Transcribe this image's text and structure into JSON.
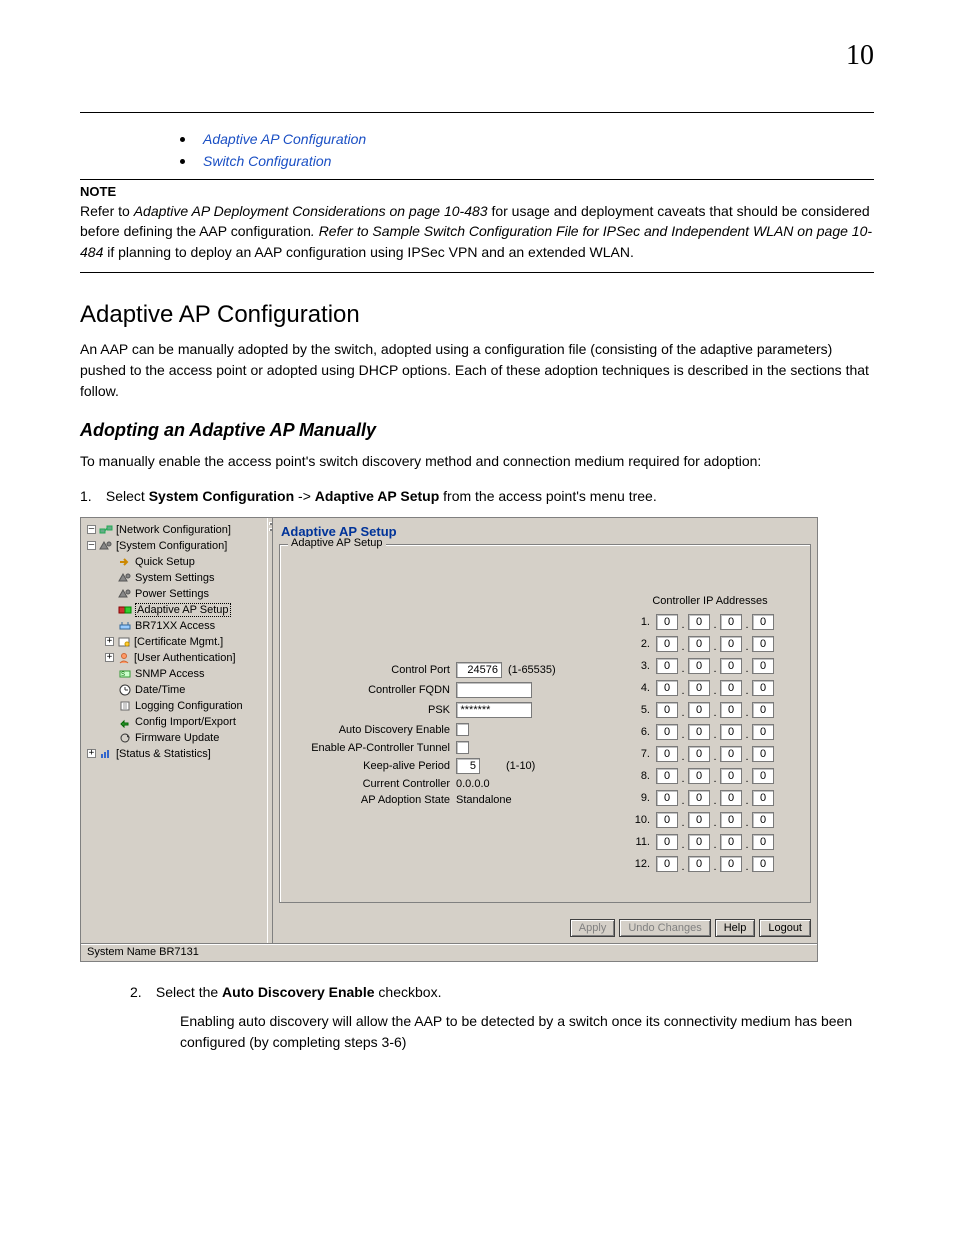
{
  "page_number": "10",
  "links": {
    "adaptive_ap_config": "Adaptive AP Configuration",
    "switch_config": "Switch Configuration"
  },
  "note": {
    "label": "NOTE",
    "text_prefix": "Refer to ",
    "ref1": "Adaptive AP Deployment Considerations on page 10-483",
    "text_mid1": " for usage and deployment caveats that should be considered before defining the AAP configuration",
    "text_mid1_tail": ". Refer to ",
    "ref2": "Sample Switch Configuration File for IPSec and Independent WLAN on page 10-484",
    "text_tail": " if planning to deploy an AAP configuration using IPSec VPN and an extended WLAN."
  },
  "headings": {
    "h2": "Adaptive AP Configuration",
    "h3": "Adopting an Adaptive AP Manually"
  },
  "paras": {
    "p1": "An AAP can be manually adopted by the switch, adopted using a configuration file (consisting of the adaptive parameters) pushed to the access point or adopted using DHCP options. Each of these adoption techniques is described in the sections that follow.",
    "p2": "To manually enable the access point's switch discovery method and connection medium required for adoption:"
  },
  "steps": {
    "s1_num": "1.",
    "s1_lead": "Select ",
    "s1_bold1": "System Configuration",
    "s1_mid": " -> ",
    "s1_bold2": "Adaptive AP Setup",
    "s1_tail": " from the access point's menu tree.",
    "s2_num": "2.",
    "s2_lead": "Select the ",
    "s2_bold": "Auto Discovery Enable",
    "s2_tail": " checkbox.",
    "s2_desc": "Enabling auto discovery will allow the AAP to be detected by a switch once its connectivity medium has been configured (by completing steps 3-6)"
  },
  "ui": {
    "tree": {
      "items": [
        {
          "indent": 0,
          "handle": "–",
          "icon": "net",
          "label": "[Network Configuration]"
        },
        {
          "indent": 0,
          "handle": "–",
          "icon": "sys",
          "label": "[System Configuration]"
        },
        {
          "indent": 1,
          "handle": "",
          "icon": "arrow",
          "label": "Quick Setup"
        },
        {
          "indent": 1,
          "handle": "",
          "icon": "sys",
          "label": "System Settings"
        },
        {
          "indent": 1,
          "handle": "",
          "icon": "sys",
          "label": "Power Settings"
        },
        {
          "indent": 1,
          "handle": "",
          "icon": "aap",
          "label": "Adaptive AP Setup",
          "selected": true
        },
        {
          "indent": 1,
          "handle": "",
          "icon": "ap",
          "label": "BR71XX Access"
        },
        {
          "indent": 1,
          "handle": "+",
          "icon": "cert",
          "label": "[Certificate Mgmt.]"
        },
        {
          "indent": 1,
          "handle": "+",
          "icon": "user",
          "label": "[User Authentication]"
        },
        {
          "indent": 1,
          "handle": "",
          "icon": "snmp",
          "label": "SNMP Access"
        },
        {
          "indent": 1,
          "handle": "",
          "icon": "clock",
          "label": "Date/Time"
        },
        {
          "indent": 1,
          "handle": "",
          "icon": "log",
          "label": "Logging Configuration"
        },
        {
          "indent": 1,
          "handle": "",
          "icon": "cfg",
          "label": "Config Import/Export"
        },
        {
          "indent": 1,
          "handle": "",
          "icon": "fw",
          "label": "Firmware Update"
        },
        {
          "indent": 0,
          "handle": "+",
          "icon": "stats",
          "label": "[Status & Statistics]"
        }
      ]
    },
    "title": "Adaptive AP Setup",
    "group_label": "Adaptive AP Setup",
    "form": {
      "control_port_label": "Control Port",
      "control_port_value": "24576",
      "control_port_range": "(1-65535)",
      "controller_fqdn_label": "Controller FQDN",
      "controller_fqdn_value": "",
      "psk_label": "PSK",
      "psk_value": "*******",
      "auto_discovery_label": "Auto Discovery Enable",
      "tunnel_label": "Enable AP-Controller Tunnel",
      "keepalive_label": "Keep-alive Period",
      "keepalive_value": "5",
      "keepalive_range": "(1-10)",
      "current_controller_label": "Current Controller",
      "current_controller_value": "0.0.0.0",
      "adoption_label": "AP Adoption State",
      "adoption_value": "Standalone"
    },
    "ips": {
      "title": "Controller IP Addresses",
      "rows": [
        {
          "n": "1.",
          "o": [
            "0",
            "0",
            "0",
            "0"
          ]
        },
        {
          "n": "2.",
          "o": [
            "0",
            "0",
            "0",
            "0"
          ]
        },
        {
          "n": "3.",
          "o": [
            "0",
            "0",
            "0",
            "0"
          ]
        },
        {
          "n": "4.",
          "o": [
            "0",
            "0",
            "0",
            "0"
          ]
        },
        {
          "n": "5.",
          "o": [
            "0",
            "0",
            "0",
            "0"
          ]
        },
        {
          "n": "6.",
          "o": [
            "0",
            "0",
            "0",
            "0"
          ]
        },
        {
          "n": "7.",
          "o": [
            "0",
            "0",
            "0",
            "0"
          ]
        },
        {
          "n": "8.",
          "o": [
            "0",
            "0",
            "0",
            "0"
          ]
        },
        {
          "n": "9.",
          "o": [
            "0",
            "0",
            "0",
            "0"
          ]
        },
        {
          "n": "10.",
          "o": [
            "0",
            "0",
            "0",
            "0"
          ]
        },
        {
          "n": "11.",
          "o": [
            "0",
            "0",
            "0",
            "0"
          ]
        },
        {
          "n": "12.",
          "o": [
            "0",
            "0",
            "0",
            "0"
          ]
        }
      ]
    },
    "buttons": {
      "apply": "Apply",
      "undo": "Undo Changes",
      "help": "Help",
      "logout": "Logout"
    },
    "statusbar": "System Name BR7131"
  },
  "colors": {
    "link": "#1a4fc4",
    "panel_bg": "#d5d0c8",
    "panel_border": "#808080",
    "title_color": "#003399"
  }
}
